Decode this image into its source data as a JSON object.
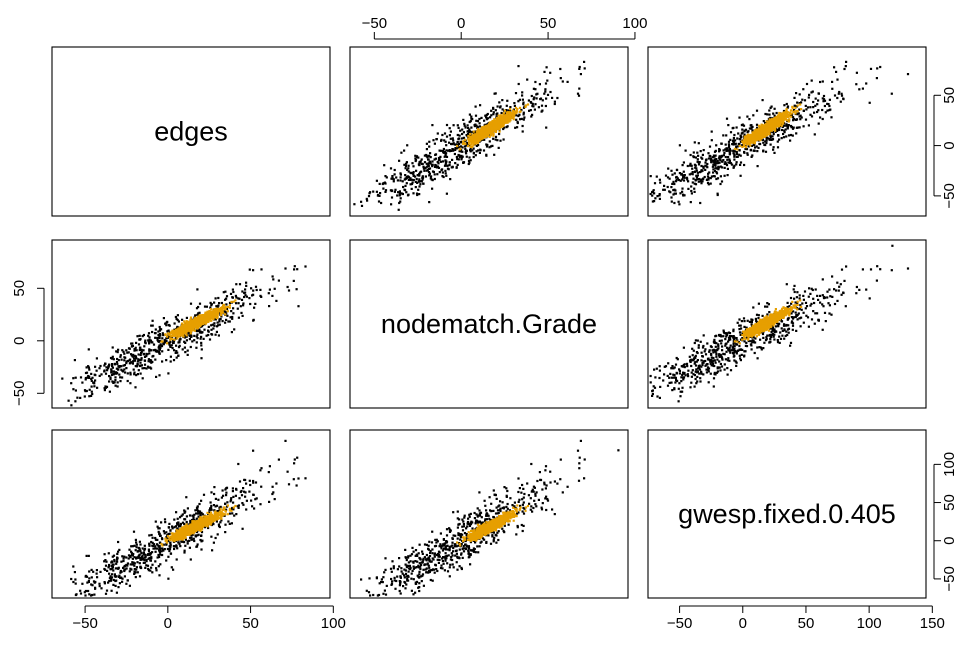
{
  "chart_data": {
    "type": "scatter",
    "variables": [
      "edges",
      "nodematch.Grade",
      "gwesp.fixed.0.405"
    ],
    "axis_ranges": [
      [
        -70,
        98
      ],
      [
        -64,
        96
      ],
      [
        -75,
        145
      ]
    ],
    "ticks": [
      [
        -50,
        0,
        50,
        100
      ],
      [
        -50,
        0,
        50,
        100
      ],
      [
        -50,
        0,
        50,
        100,
        150
      ]
    ],
    "tick_labels": [
      [
        "−50",
        "0",
        "50",
        "100"
      ],
      [
        "−50",
        "0",
        "50",
        "100"
      ],
      [
        "−50",
        "0",
        "50",
        "100",
        "150"
      ]
    ],
    "series": [
      {
        "color": "#000000",
        "centers": [
          0,
          0,
          0
        ],
        "spreads": [
          30,
          27,
          40
        ],
        "n_points": 700
      },
      {
        "color": "#e69f00",
        "centers": [
          17,
          17,
          19
        ],
        "spreads": [
          7,
          6,
          8
        ],
        "n_points": 1100
      }
    ],
    "grid": false,
    "legend": "none"
  }
}
